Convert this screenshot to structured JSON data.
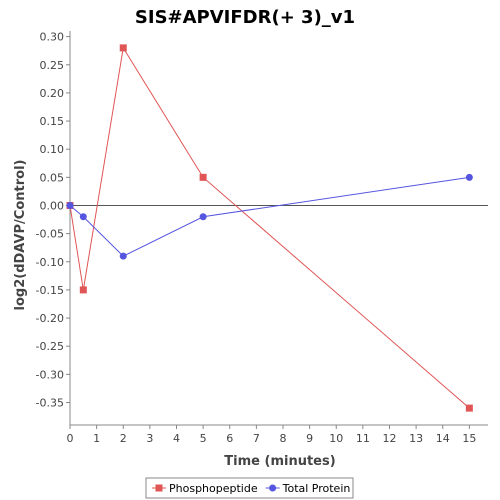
{
  "chart_data": {
    "type": "line",
    "title": "SIS#APVIFDR(+ 3)_v1",
    "xlabel": "Time (minutes)",
    "ylabel": "log2(dDAVP/Control)",
    "xlim": [
      0,
      15.7
    ],
    "ylim": [
      -0.39,
      0.31
    ],
    "x_ticks": [
      0,
      1,
      2,
      3,
      4,
      5,
      6,
      7,
      8,
      9,
      10,
      11,
      12,
      13,
      14,
      15
    ],
    "y_ticks": [
      0.3,
      0.25,
      0.2,
      0.15,
      0.1,
      0.05,
      0.0,
      -0.05,
      -0.1,
      -0.15,
      -0.2,
      -0.25,
      -0.3,
      -0.35
    ],
    "y_tick_labels": [
      "0.30",
      "0.25",
      "0.20",
      "0.15",
      "0.10",
      "0.05",
      "0.00",
      "-0.05",
      "-0.10",
      "-0.15",
      "-0.20",
      "-0.25",
      "-0.30",
      "-0.35"
    ],
    "grid": false,
    "zero_line": true,
    "legend_placement": "bottom",
    "series": [
      {
        "name": "Phosphopeptide",
        "color": "#e05555",
        "marker": "square",
        "x": [
          0,
          0.5,
          2,
          5,
          15
        ],
        "y": [
          0.0,
          -0.15,
          0.28,
          0.05,
          -0.36
        ]
      },
      {
        "name": "Total Protein",
        "color": "#5555e0",
        "marker": "circle",
        "x": [
          0,
          0.5,
          2,
          5,
          15
        ],
        "y": [
          0.0,
          -0.02,
          -0.09,
          -0.02,
          0.05
        ]
      }
    ]
  }
}
